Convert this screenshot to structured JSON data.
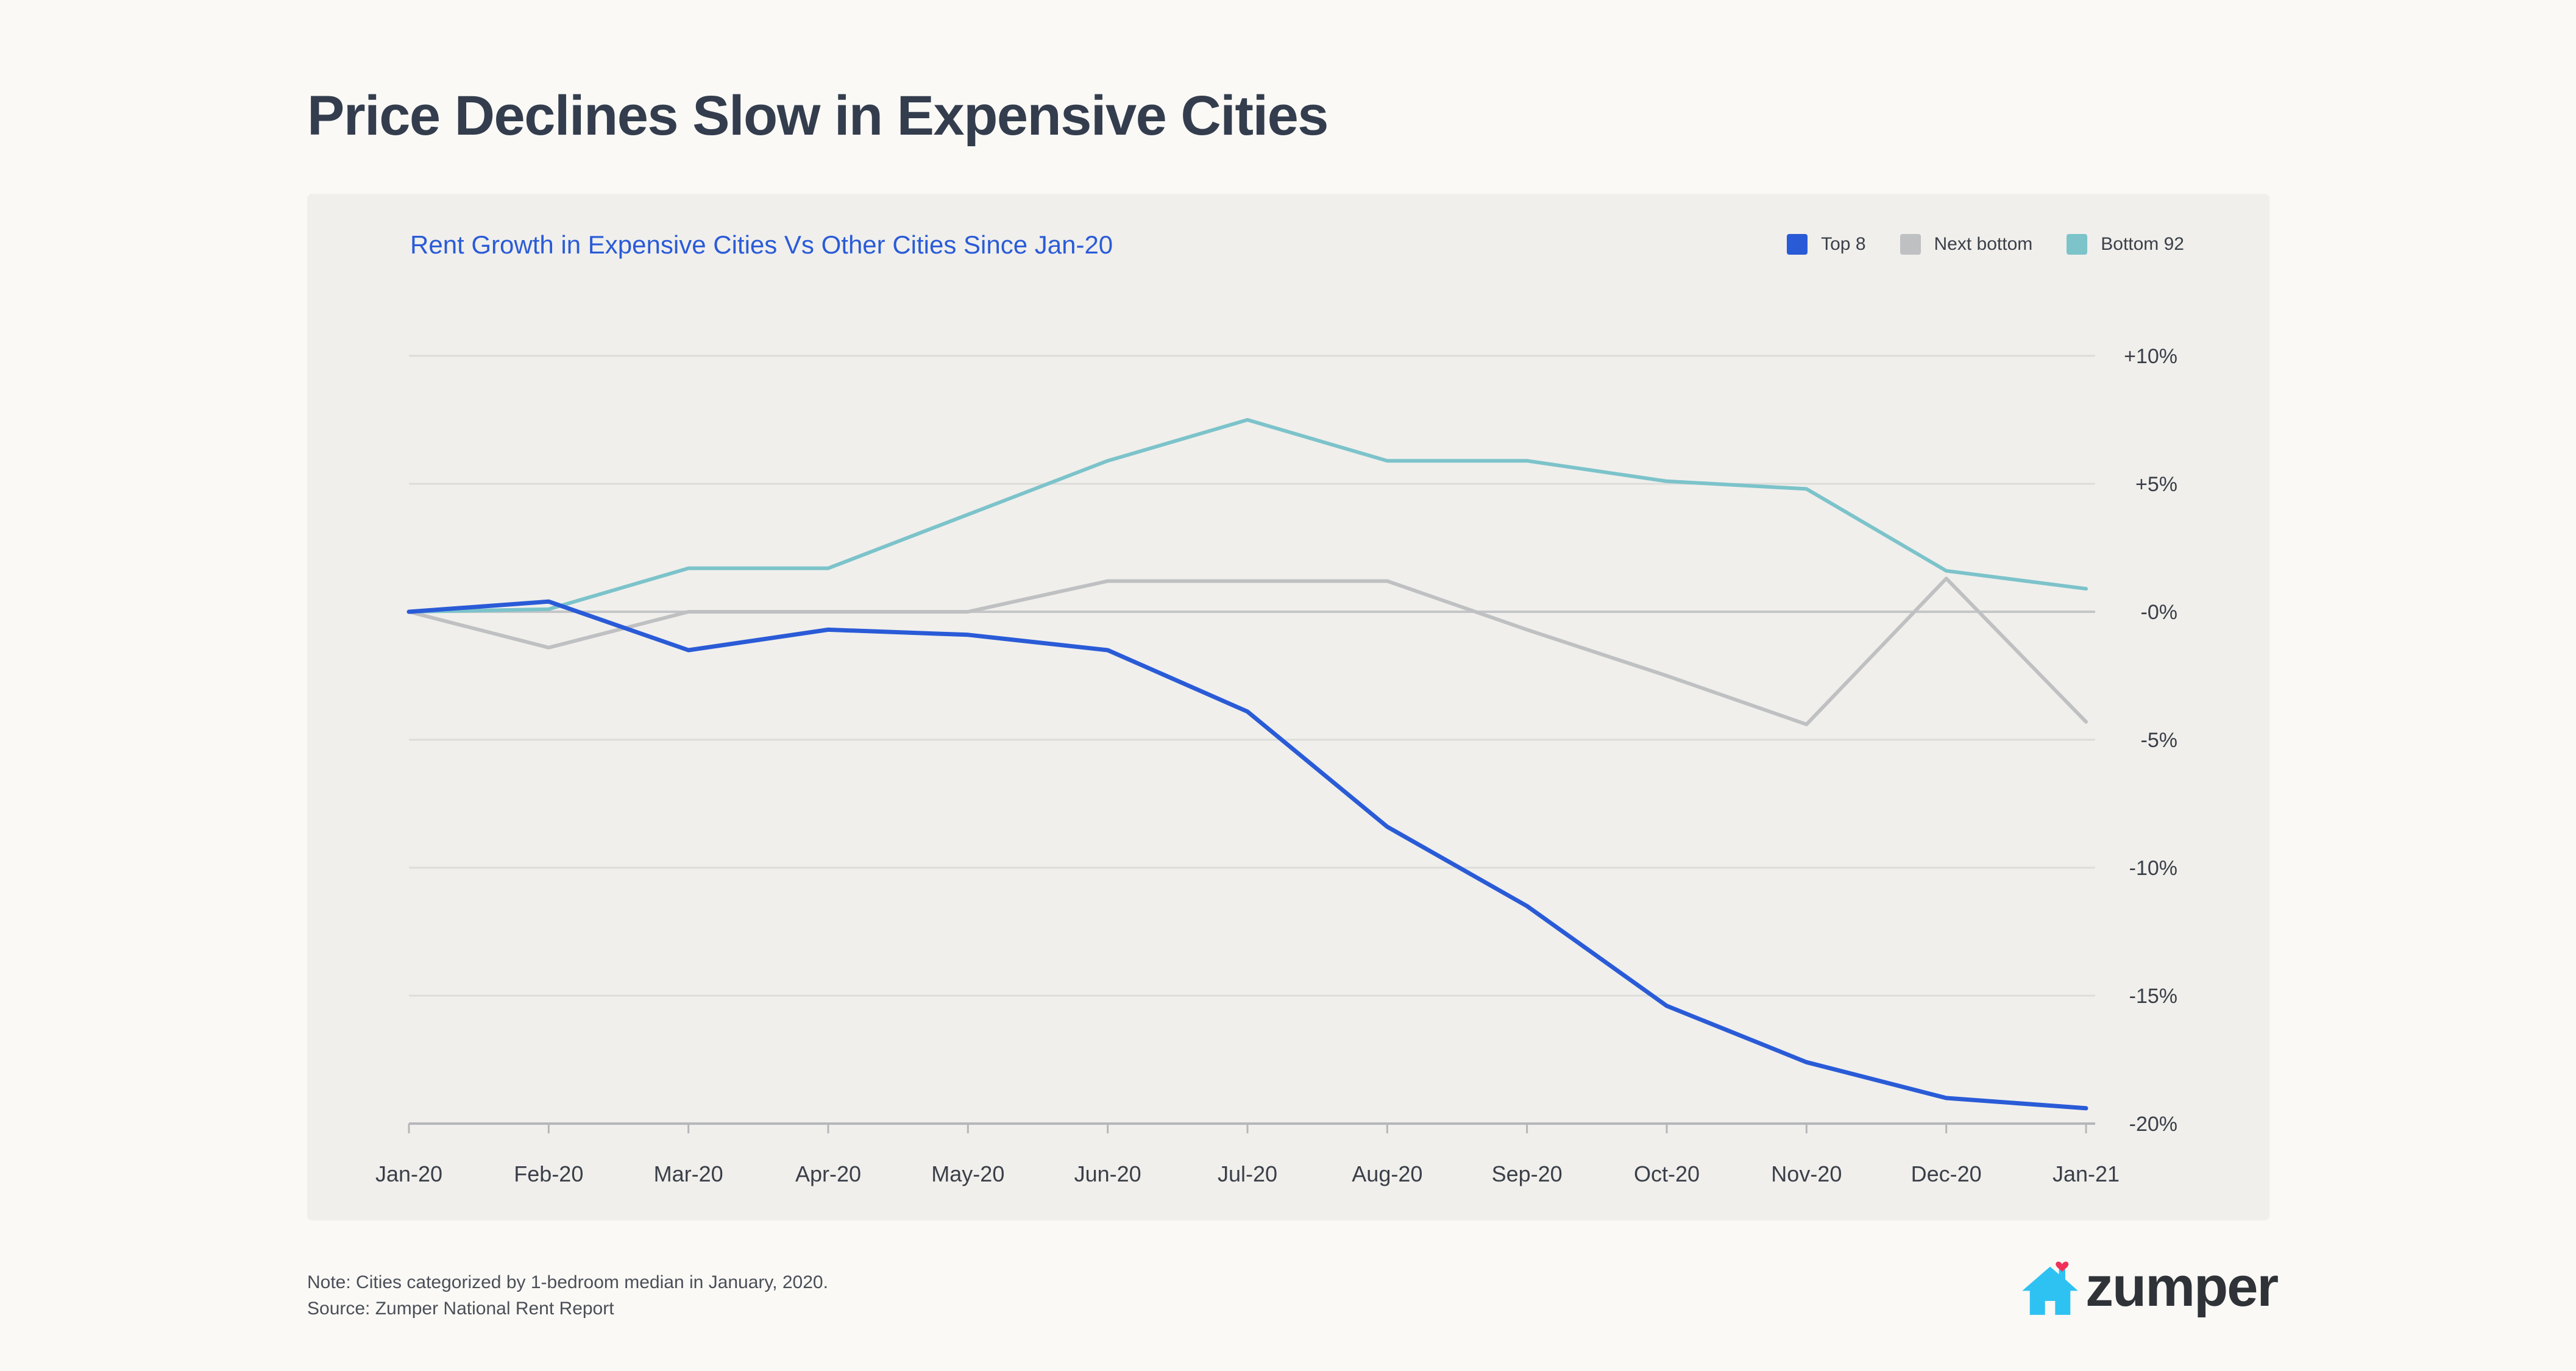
{
  "page": {
    "title": "Price Declines Slow in Expensive Cities"
  },
  "footnote": {
    "note": "Note: Cities categorized by 1-bedroom median in January, 2020.",
    "source": "Source: Zumper National Rent Report"
  },
  "brand": {
    "name": "zumper",
    "icon": "house-heart-icon",
    "house_color": "#2ec2f2",
    "heart_color": "#f0325a"
  },
  "chart_data": {
    "type": "line",
    "title": "Rent Growth in Expensive Cities Vs Other Cities Since Jan-20",
    "xlabel": "",
    "ylabel": "",
    "categories": [
      "Jan-20",
      "Feb-20",
      "Mar-20",
      "Apr-20",
      "May-20",
      "Jun-20",
      "Jul-20",
      "Aug-20",
      "Sep-20",
      "Oct-20",
      "Nov-20",
      "Dec-20",
      "Jan-21"
    ],
    "ylim": [
      -20,
      10
    ],
    "yticks": [
      10,
      5,
      0,
      -5,
      -10,
      -15,
      -20
    ],
    "ytick_labels": [
      "+10%",
      "+5%",
      "-0%",
      "-5%",
      "-10%",
      "-15%",
      "-20%"
    ],
    "grid": true,
    "legend_position": "top-right",
    "series": [
      {
        "name": "Top 8",
        "color": "#2a5bd7",
        "values": [
          0,
          0.4,
          -1.5,
          -0.7,
          -0.9,
          -1.5,
          -3.9,
          -8.4,
          -11.5,
          -15.4,
          -17.6,
          -19.0,
          -19.4
        ]
      },
      {
        "name": "Next bottom",
        "color": "#bfc0c2",
        "values": [
          0,
          -1.4,
          0,
          0,
          0,
          1.2,
          1.2,
          1.2,
          -0.7,
          -2.5,
          -4.4,
          1.3,
          -4.3
        ]
      },
      {
        "name": "Bottom 92",
        "color": "#7cc3ca",
        "values": [
          0,
          0.1,
          1.7,
          1.7,
          3.8,
          5.9,
          7.5,
          5.9,
          5.9,
          5.1,
          4.8,
          1.6,
          0.9
        ]
      }
    ]
  }
}
